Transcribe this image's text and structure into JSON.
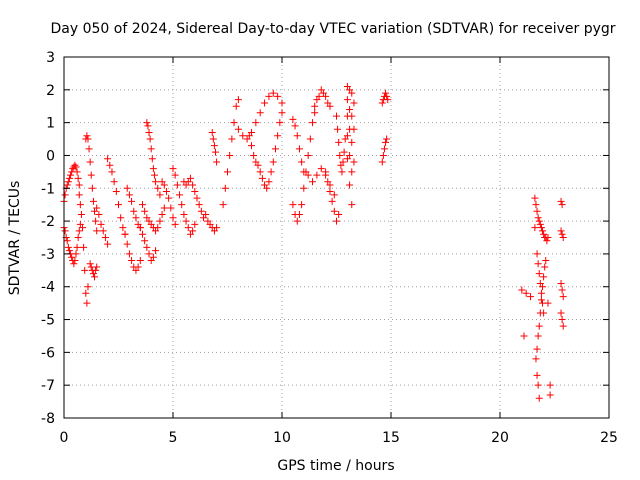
{
  "chart_data": {
    "type": "scatter",
    "title": "Day 050 of 2024, Sidereal Day-to-day VTEC variation (SDTVAR) for receiver pygr",
    "xlabel": "GPS time / hours",
    "ylabel": "SDTVAR / TECUs",
    "xlim": [
      0,
      25
    ],
    "ylim": [
      -8,
      3
    ],
    "x_ticks": [
      "0",
      "5",
      "10",
      "15",
      "20",
      "25"
    ],
    "y_ticks": [
      "-8",
      "-7",
      "-6",
      "-5",
      "-4",
      "-3",
      "-2",
      "-1",
      "0",
      "1",
      "2",
      "3"
    ],
    "grid": true,
    "marker": "+",
    "color": "#ff0000",
    "series": [
      {
        "name": "SDTVAR",
        "segments": [
          {
            "x": [
              0.0,
              0.05,
              0.1,
              0.15,
              0.2,
              0.25,
              0.3,
              0.35,
              0.4,
              0.45,
              0.5,
              0.55,
              0.6,
              0.65,
              0.7
            ],
            "y": [
              -1.4,
              -1.2,
              -1.0,
              -0.9,
              -0.8,
              -0.7,
              -0.6,
              -0.5,
              -0.4,
              -0.35,
              -0.3,
              -0.35,
              -0.5,
              -0.7,
              -0.9
            ]
          },
          {
            "x": [
              0.0,
              0.05,
              0.1,
              0.15,
              0.2,
              0.25,
              0.3,
              0.35,
              0.4,
              0.45,
              0.5,
              0.55,
              0.6,
              0.65,
              0.7,
              0.75
            ],
            "y": [
              -2.2,
              -2.3,
              -2.5,
              -2.6,
              -2.8,
              -2.9,
              -3.0,
              -3.1,
              -3.2,
              -3.3,
              -3.2,
              -3.0,
              -2.8,
              -2.5,
              -2.3,
              -2.1
            ]
          },
          {
            "x": [
              0.7,
              0.75,
              0.8,
              0.85,
              0.9,
              0.95,
              1.0,
              1.05,
              1.1
            ],
            "y": [
              -1.2,
              -1.5,
              -1.8,
              -2.2,
              -2.8,
              -3.5,
              -4.2,
              -4.5,
              -4.0
            ]
          },
          {
            "x": [
              1.0,
              1.05,
              1.1,
              1.15,
              1.2,
              1.25,
              1.3,
              1.35,
              1.4,
              1.45,
              1.5
            ],
            "y": [
              0.5,
              0.6,
              0.5,
              0.2,
              -0.2,
              -0.6,
              -1.0,
              -1.4,
              -1.7,
              -2.0,
              -2.3
            ]
          },
          {
            "x": [
              1.2,
              1.25,
              1.3,
              1.35,
              1.4,
              1.45,
              1.5
            ],
            "y": [
              -3.3,
              -3.4,
              -3.5,
              -3.6,
              -3.7,
              -3.5,
              -3.4
            ]
          },
          {
            "x": [
              1.5,
              1.6,
              1.7,
              1.8,
              1.9,
              2.0
            ],
            "y": [
              -1.6,
              -1.8,
              -2.1,
              -2.3,
              -2.5,
              -2.7
            ]
          },
          {
            "x": [
              2.0,
              2.1,
              2.2,
              2.3,
              2.4,
              2.5,
              2.6,
              2.7,
              2.8
            ],
            "y": [
              -0.1,
              -0.3,
              -0.5,
              -0.8,
              -1.1,
              -1.5,
              -1.9,
              -2.2,
              -2.4
            ]
          },
          {
            "x": [
              2.8,
              2.9,
              3.0,
              3.1,
              3.2,
              3.3,
              3.4,
              3.5
            ],
            "y": [
              -2.4,
              -2.7,
              -3.0,
              -3.2,
              -3.4,
              -3.5,
              -3.4,
              -3.2
            ]
          },
          {
            "x": [
              2.9,
              3.0,
              3.1,
              3.2,
              3.3,
              3.4,
              3.5
            ],
            "y": [
              -1.0,
              -1.2,
              -1.4,
              -1.7,
              -1.9,
              -2.1,
              -2.2
            ]
          },
          {
            "x": [
              3.5,
              3.6,
              3.7,
              3.8,
              3.9,
              4.0,
              4.1,
              4.2
            ],
            "y": [
              -2.2,
              -2.4,
              -2.6,
              -2.8,
              -3.0,
              -3.2,
              -3.1,
              -2.9
            ]
          },
          {
            "x": [
              3.8,
              3.85,
              3.9,
              3.95,
              4.0,
              4.05,
              4.1,
              4.15,
              4.2,
              4.3,
              4.4
            ],
            "y": [
              1.0,
              0.9,
              0.7,
              0.5,
              0.2,
              -0.1,
              -0.4,
              -0.6,
              -0.8,
              -1.0,
              -1.2
            ]
          },
          {
            "x": [
              3.6,
              3.7,
              3.8,
              3.9,
              4.0,
              4.1,
              4.2,
              4.3,
              4.4,
              4.5,
              4.6
            ],
            "y": [
              -1.5,
              -1.7,
              -1.9,
              -2.0,
              -2.1,
              -2.2,
              -2.3,
              -2.2,
              -2.0,
              -1.8,
              -1.6
            ]
          },
          {
            "x": [
              4.5,
              4.6,
              4.7,
              4.8,
              4.9,
              5.0,
              5.1
            ],
            "y": [
              -0.8,
              -0.9,
              -1.1,
              -1.3,
              -1.6,
              -1.9,
              -2.1
            ]
          },
          {
            "x": [
              5.0,
              5.1,
              5.2,
              5.3,
              5.4,
              5.5,
              5.6,
              5.7,
              5.8,
              5.9,
              6.0
            ],
            "y": [
              -0.4,
              -0.6,
              -0.9,
              -1.2,
              -1.5,
              -1.8,
              -2.0,
              -2.2,
              -2.4,
              -2.3,
              -2.1
            ]
          },
          {
            "x": [
              5.5,
              5.6,
              5.7,
              5.8,
              5.9,
              6.0,
              6.1,
              6.2,
              6.3,
              6.4
            ],
            "y": [
              -0.8,
              -0.9,
              -0.8,
              -0.7,
              -0.9,
              -1.1,
              -1.3,
              -1.5,
              -1.7,
              -1.9
            ]
          },
          {
            "x": [
              6.5,
              6.6,
              6.7,
              6.8,
              6.9,
              7.0
            ],
            "y": [
              -1.8,
              -2.0,
              -2.1,
              -2.2,
              -2.3,
              -2.2
            ]
          },
          {
            "x": [
              6.8,
              6.85,
              6.9,
              6.95,
              7.0
            ],
            "y": [
              0.7,
              0.5,
              0.3,
              0.1,
              -0.2
            ]
          },
          {
            "x": [
              7.3,
              7.4,
              7.5,
              7.6,
              7.7,
              7.8,
              7.9,
              8.0
            ],
            "y": [
              -1.5,
              -1.0,
              -0.5,
              0.0,
              0.5,
              1.0,
              1.5,
              1.7
            ]
          },
          {
            "x": [
              8.0,
              8.2,
              8.4,
              8.6,
              8.8,
              9.0,
              9.2,
              9.4,
              9.6,
              9.8,
              10.0
            ],
            "y": [
              0.8,
              0.6,
              0.5,
              0.7,
              1.0,
              1.3,
              1.6,
              1.8,
              1.9,
              1.8,
              1.6
            ]
          },
          {
            "x": [
              8.5,
              8.6,
              8.7,
              8.8,
              8.9,
              9.0,
              9.1,
              9.2,
              9.3,
              9.4,
              9.5,
              9.6,
              9.7,
              9.8,
              9.9,
              10.0
            ],
            "y": [
              0.6,
              0.3,
              0.0,
              -0.2,
              -0.3,
              -0.5,
              -0.7,
              -0.9,
              -1.0,
              -0.8,
              -0.5,
              -0.2,
              0.2,
              0.6,
              1.0,
              1.3
            ]
          },
          {
            "x": [
              10.5,
              10.6,
              10.7,
              10.8,
              10.9,
              11.0,
              11.1,
              11.2,
              11.3,
              11.4,
              11.5
            ],
            "y": [
              -1.5,
              -1.8,
              -2.0,
              -1.8,
              -1.5,
              -1.0,
              -0.5,
              0.0,
              0.5,
              1.0,
              1.3
            ]
          },
          {
            "x": [
              10.5,
              10.6,
              10.7,
              10.8,
              10.9,
              11.0
            ],
            "y": [
              1.1,
              0.9,
              0.6,
              0.2,
              -0.2,
              -0.5
            ]
          },
          {
            "x": [
              11.5,
              11.6,
              11.7,
              11.8,
              11.9,
              12.0,
              12.1,
              12.2
            ],
            "y": [
              1.5,
              1.7,
              1.8,
              2.0,
              1.9,
              1.8,
              1.6,
              1.5
            ]
          },
          {
            "x": [
              11.2,
              11.4,
              11.6,
              11.8,
              12.0,
              12.2,
              12.4
            ],
            "y": [
              -0.6,
              -0.8,
              -0.6,
              -0.4,
              -0.6,
              -0.9,
              -1.2
            ]
          },
          {
            "x": [
              12.0,
              12.1,
              12.2,
              12.3,
              12.4,
              12.5,
              12.6
            ],
            "y": [
              -0.5,
              -0.8,
              -1.1,
              -1.4,
              -1.7,
              -2.0,
              -1.8
            ]
          },
          {
            "x": [
              12.5,
              12.55,
              12.6,
              12.65,
              12.7,
              12.75,
              12.8,
              12.85,
              12.9
            ],
            "y": [
              1.2,
              0.8,
              0.4,
              0.0,
              -0.3,
              -0.5,
              -0.2,
              0.1,
              0.5
            ]
          },
          {
            "x": [
              13.0,
              13.0,
              13.0,
              13.0,
              13.0,
              13.1,
              13.1,
              13.1,
              13.1,
              13.1,
              13.2,
              13.2,
              13.2,
              13.2,
              13.2,
              13.3,
              13.3,
              13.3
            ],
            "y": [
              2.1,
              1.7,
              1.2,
              0.6,
              -0.1,
              2.0,
              1.4,
              0.8,
              0.0,
              -0.9,
              1.9,
              1.2,
              0.4,
              -0.5,
              -1.5,
              1.6,
              0.8,
              -0.2
            ]
          },
          {
            "x": [
              14.6,
              14.65,
              14.7,
              14.75,
              14.8,
              14.85
            ],
            "y": [
              1.6,
              1.7,
              1.8,
              1.9,
              1.8,
              1.7
            ]
          },
          {
            "x": [
              14.6,
              14.65,
              14.7,
              14.75,
              14.8
            ],
            "y": [
              -0.2,
              0.0,
              0.2,
              0.4,
              0.5
            ]
          },
          {
            "x": [
              21.0,
              21.2,
              21.4
            ],
            "y": [
              -4.1,
              -4.2,
              -4.3
            ]
          },
          {
            "x": [
              21.1,
              21.6
            ],
            "y": [
              -5.5,
              -2.2
            ]
          },
          {
            "x": [
              21.6,
              21.65,
              21.7,
              21.75,
              21.8,
              21.85,
              21.9,
              21.95,
              22.0,
              22.05,
              22.1,
              22.15,
              22.2
            ],
            "y": [
              -1.3,
              -1.5,
              -1.7,
              -1.9,
              -2.0,
              -2.1,
              -2.2,
              -2.3,
              -2.4,
              -2.5,
              -2.5,
              -2.6,
              -2.5
            ]
          },
          {
            "x": [
              21.7,
              21.75,
              21.8,
              21.85,
              21.9,
              21.95,
              22.0
            ],
            "y": [
              -3.0,
              -3.3,
              -3.6,
              -3.9,
              -4.2,
              -4.5,
              -4.8
            ]
          },
          {
            "x": [
              21.65,
              21.7,
              21.75,
              21.8,
              21.85,
              21.9,
              21.95,
              22.0,
              22.05,
              22.1
            ],
            "y": [
              -6.2,
              -5.9,
              -5.5,
              -5.2,
              -4.8,
              -4.4,
              -4.0,
              -3.7,
              -3.4,
              -3.2
            ]
          },
          {
            "x": [
              21.7,
              21.75,
              21.8
            ],
            "y": [
              -6.7,
              -7.0,
              -7.4
            ]
          },
          {
            "x": [
              22.2,
              22.3,
              22.3
            ],
            "y": [
              -4.5,
              -7.0,
              -7.3
            ]
          },
          {
            "x": [
              22.8,
              22.85,
              22.9,
              22.8,
              22.85,
              22.9,
              22.8,
              22.85
            ],
            "y": [
              -3.9,
              -4.1,
              -4.3,
              -4.8,
              -5.0,
              -5.2,
              -1.4,
              -1.5
            ]
          },
          {
            "x": [
              22.8,
              22.85,
              22.9
            ],
            "y": [
              -2.3,
              -2.4,
              -2.5
            ]
          }
        ]
      }
    ]
  }
}
